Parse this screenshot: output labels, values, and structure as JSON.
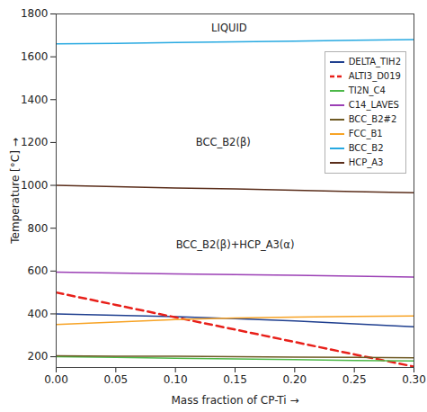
{
  "chart_data": {
    "type": "line",
    "x_label": "Mass fraction of CP-Ti",
    "y_label": "Temperature [°C]",
    "x": [
      0,
      0.05,
      0.1,
      0.15,
      0.2,
      0.25,
      0.3
    ],
    "xlim": [
      0,
      0.3
    ],
    "xticks": [
      {
        "value": 0,
        "label": "0.00"
      },
      {
        "value": 0.05,
        "label": "0.05"
      },
      {
        "value": 0.1,
        "label": "0.10"
      },
      {
        "value": 0.15,
        "label": "0.15"
      },
      {
        "value": 0.2,
        "label": "0.20"
      },
      {
        "value": 0.25,
        "label": "0.25"
      },
      {
        "value": 0.3,
        "label": "0.30"
      }
    ],
    "ylim": [
      150,
      1800
    ],
    "yticks": [
      200,
      400,
      600,
      800,
      1000,
      1200,
      1400,
      1600,
      1800
    ],
    "grid": false,
    "legend": "top-right",
    "series": [
      {
        "name": "DELTA_TIH2",
        "color": "#1f3f8f",
        "line_style": "solid",
        "values": [
          400,
          394,
          387,
          378,
          367,
          354,
          340
        ]
      },
      {
        "name": "ALTI3_D019",
        "color": "#e8201a",
        "line_style": "dashed",
        "values": [
          500,
          442,
          384,
          327,
          269,
          211,
          154
        ]
      },
      {
        "name": "TI2N_C4",
        "color": "#4cb848",
        "line_style": "solid",
        "values": [
          200,
          197,
          193,
          190,
          187,
          183,
          180
        ]
      },
      {
        "name": "C14_LAVES",
        "color": "#9b3fb5",
        "line_style": "solid",
        "values": [
          595,
          591,
          587,
          583,
          580,
          576,
          572
        ]
      },
      {
        "name": "BCC_B2#2",
        "color": "#6e5a24",
        "line_style": "solid",
        "values": [
          205,
          203,
          202,
          200,
          198,
          197,
          195
        ]
      },
      {
        "name": "FCC_B1",
        "color": "#f7a325",
        "line_style": "solid",
        "values": [
          350,
          362,
          374,
          381,
          385,
          388,
          390
        ]
      },
      {
        "name": "BCC_B2",
        "color": "#27a9e1",
        "line_style": "solid",
        "values": [
          1660,
          1663,
          1667,
          1670,
          1673,
          1677,
          1680
        ]
      },
      {
        "name": "HCP_A3",
        "color": "#5a2d1a",
        "line_style": "solid",
        "values": [
          1000,
          994,
          988,
          983,
          977,
          971,
          965
        ]
      }
    ],
    "annotations": [
      {
        "text": "LIQUID",
        "x": 0.145,
        "y": 1735
      },
      {
        "text": "BCC_B2(β)",
        "x": 0.14,
        "y": 1200
      },
      {
        "text": "BCC_B2(β)+HCP_A3(α)",
        "x": 0.15,
        "y": 720
      }
    ]
  }
}
